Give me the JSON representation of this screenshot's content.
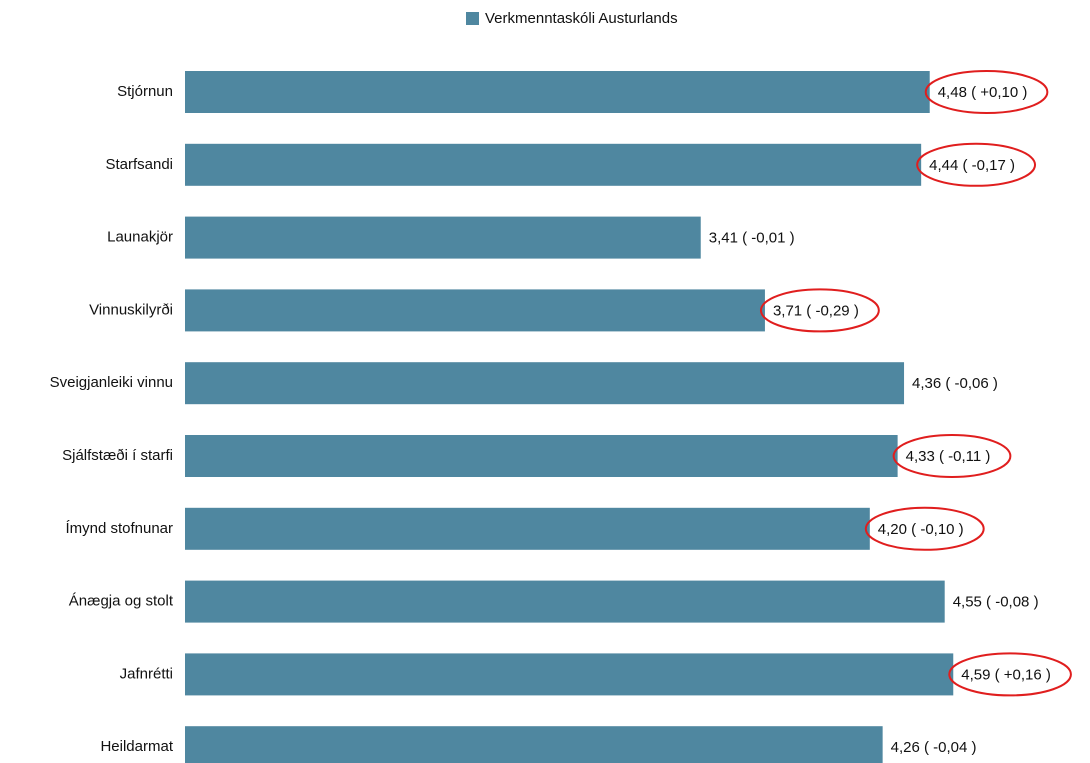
{
  "chart_data": {
    "type": "barh",
    "legend": "Verkmenntaskóli Austurlands",
    "color": "#4f87a0",
    "categories": [
      "Stjórnun",
      "Starfsandi",
      "Launakjör",
      "Vinnuskilyrði",
      "Sveigjanleiki vinnu",
      "Sjálfstæði í starfi",
      "Ímynd stofnunar",
      "Ánægja og stolt",
      "Jafnrétti",
      "Heildarmat"
    ],
    "values": [
      4.48,
      4.44,
      3.41,
      3.71,
      4.36,
      4.33,
      4.2,
      4.55,
      4.59,
      4.26
    ],
    "value_labels": [
      "4,48 ( +0,10 )",
      "4,44 ( -0,17 )",
      "3,41 ( -0,01 )",
      "3,71 ( -0,29 )",
      "4,36 ( -0,06 )",
      "4,33 ( -0,11 )",
      "4,20 ( -0,10 )",
      "4,55 ( -0,08 )",
      "4,59 ( +0,16 )",
      "4,26 ( -0,04 )"
    ],
    "xlim": [
      1,
      5
    ],
    "highlighted": [
      0,
      1,
      3,
      5,
      6,
      8
    ],
    "highlight_color": "#e01e1e"
  }
}
